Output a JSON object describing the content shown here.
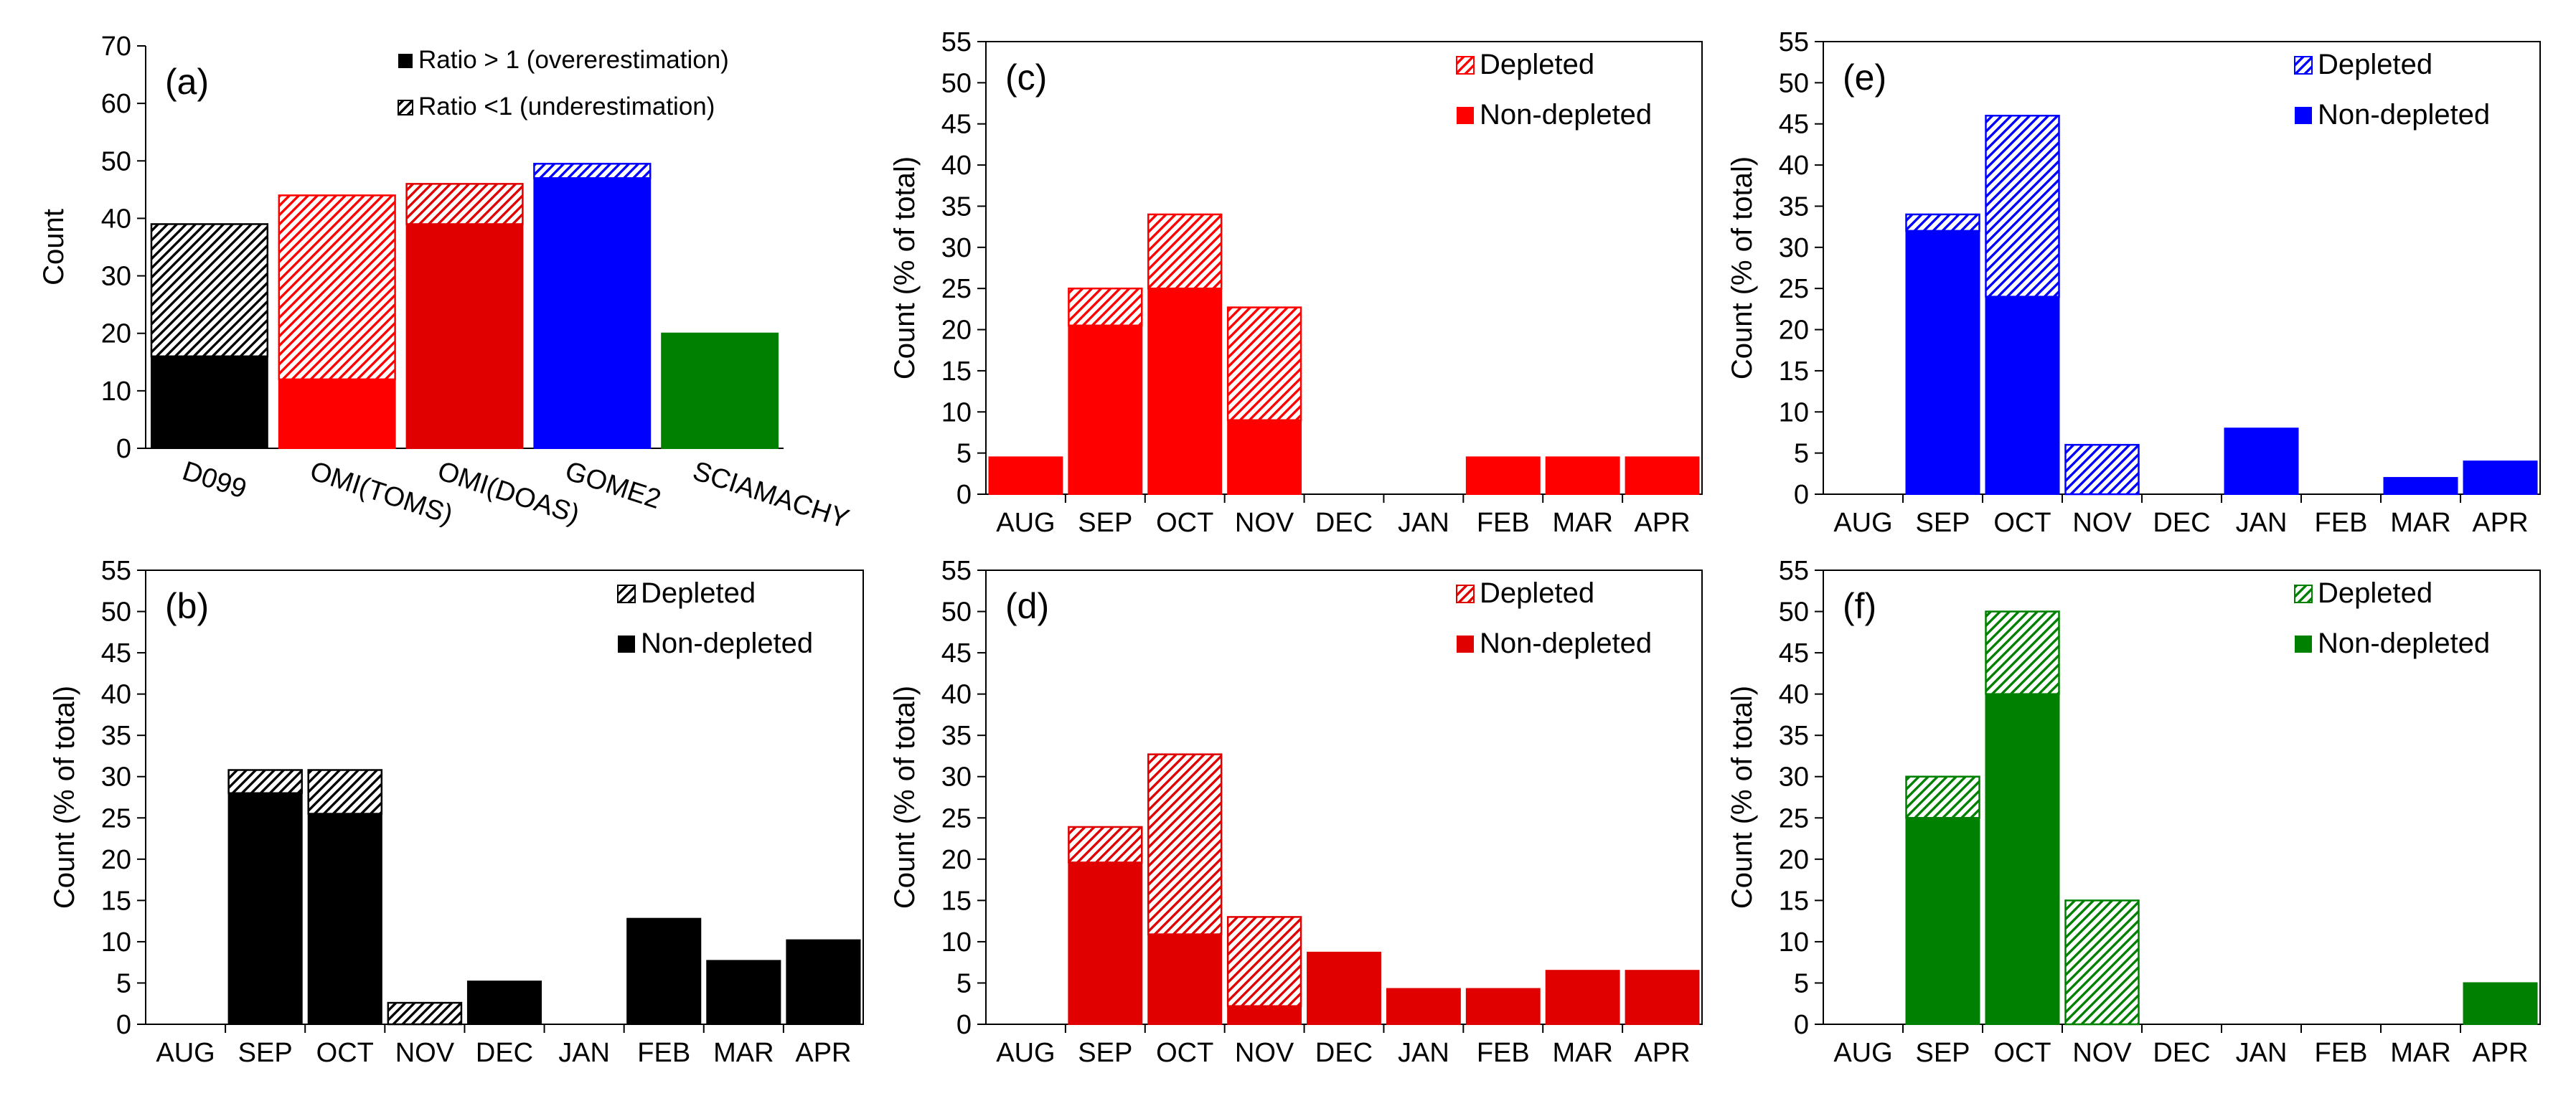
{
  "colors": {
    "black": "#000000",
    "red_light": "#ff0000",
    "red_dark": "#e00000",
    "blue": "#0000ff",
    "green": "#008000"
  },
  "chart_data": [
    {
      "panel": "(a)",
      "type": "bar",
      "subtype": "stacked",
      "ylabel": "Count",
      "ylim": [
        0,
        70
      ],
      "yticks": [
        0,
        10,
        20,
        30,
        40,
        50,
        60,
        70
      ],
      "categories": [
        "D099",
        "OMI(TOMS)",
        "OMI(DOAS)",
        "GOME2",
        "SCIAMACHY"
      ],
      "bar_colors": [
        "#000000",
        "#ff0000",
        "#e00000",
        "#0000ff",
        "#008000"
      ],
      "series": [
        {
          "name": "Ratio > 1 (overerestimation)",
          "pattern": "solid",
          "values": [
            16,
            12,
            39,
            47,
            20
          ]
        },
        {
          "name": "Ratio <1 (underestimation)",
          "pattern": "hatched",
          "values": [
            23,
            32,
            7,
            2.5,
            0
          ]
        }
      ],
      "legend": [
        "Ratio > 1 (overerestimation)",
        "Ratio <1 (underestimation)"
      ],
      "legend_position": "top-right"
    },
    {
      "panel": "(b)",
      "type": "bar",
      "subtype": "stacked",
      "ylabel": "Count (% of total)",
      "ylim": [
        0,
        55
      ],
      "yticks": [
        0,
        5,
        10,
        15,
        20,
        25,
        30,
        35,
        40,
        45,
        50,
        55
      ],
      "color": "#000000",
      "categories": [
        "AUG",
        "SEP",
        "OCT",
        "NOV",
        "DEC",
        "JAN",
        "FEB",
        "MAR",
        "APR"
      ],
      "series": [
        {
          "name": "Non-depleted",
          "pattern": "solid",
          "values": [
            0,
            28,
            25.5,
            0,
            5.2,
            0,
            12.8,
            7.7,
            10.2
          ]
        },
        {
          "name": "Depleted",
          "pattern": "hatched",
          "values": [
            0,
            2.8,
            5.3,
            2.6,
            0,
            0,
            0,
            0,
            0
          ]
        }
      ],
      "legend": [
        "Depleted",
        "Non-depleted"
      ],
      "legend_position": "top-right"
    },
    {
      "panel": "(c)",
      "type": "bar",
      "subtype": "stacked",
      "ylabel": "Count (% of total)",
      "ylim": [
        0,
        55
      ],
      "yticks": [
        0,
        5,
        10,
        15,
        20,
        25,
        30,
        35,
        40,
        45,
        50,
        55
      ],
      "color": "#ff0000",
      "categories": [
        "AUG",
        "SEP",
        "OCT",
        "NOV",
        "DEC",
        "JAN",
        "FEB",
        "MAR",
        "APR"
      ],
      "series": [
        {
          "name": "Non-depleted",
          "pattern": "solid",
          "values": [
            4.5,
            20.5,
            25,
            9,
            0,
            0,
            4.5,
            4.5,
            4.5
          ]
        },
        {
          "name": "Depleted",
          "pattern": "hatched",
          "values": [
            0,
            4.5,
            9,
            13.7,
            0,
            0,
            0,
            0,
            0
          ]
        }
      ],
      "legend": [
        "Depleted",
        "Non-depleted"
      ],
      "legend_position": "top-right"
    },
    {
      "panel": "(d)",
      "type": "bar",
      "subtype": "stacked",
      "ylabel": "Count (% of total)",
      "ylim": [
        0,
        55
      ],
      "yticks": [
        0,
        5,
        10,
        15,
        20,
        25,
        30,
        35,
        40,
        45,
        50,
        55
      ],
      "color": "#e00000",
      "categories": [
        "AUG",
        "SEP",
        "OCT",
        "NOV",
        "DEC",
        "JAN",
        "FEB",
        "MAR",
        "APR"
      ],
      "series": [
        {
          "name": "Non-depleted",
          "pattern": "solid",
          "values": [
            0,
            19.6,
            10.9,
            2.2,
            8.7,
            4.3,
            4.3,
            6.5,
            6.5
          ]
        },
        {
          "name": "Depleted",
          "pattern": "hatched",
          "values": [
            0,
            4.3,
            21.8,
            10.8,
            0,
            0,
            0,
            0,
            0
          ]
        }
      ],
      "legend": [
        "Depleted",
        "Non-depleted"
      ],
      "legend_position": "top-right"
    },
    {
      "panel": "(e)",
      "type": "bar",
      "subtype": "stacked",
      "ylabel": "Count (% of total)",
      "ylim": [
        0,
        55
      ],
      "yticks": [
        0,
        5,
        10,
        15,
        20,
        25,
        30,
        35,
        40,
        45,
        50,
        55
      ],
      "color": "#0000ff",
      "categories": [
        "AUG",
        "SEP",
        "OCT",
        "NOV",
        "DEC",
        "JAN",
        "FEB",
        "MAR",
        "APR"
      ],
      "series": [
        {
          "name": "Non-depleted",
          "pattern": "solid",
          "values": [
            0,
            32,
            24,
            0,
            0,
            8,
            0,
            2,
            4
          ]
        },
        {
          "name": "Depleted",
          "pattern": "hatched",
          "values": [
            0,
            2,
            22,
            6,
            0,
            0,
            0,
            0,
            0
          ]
        }
      ],
      "legend": [
        "Depleted",
        "Non-depleted"
      ],
      "legend_position": "top-right"
    },
    {
      "panel": "(f)",
      "type": "bar",
      "subtype": "stacked",
      "ylabel": "Count (% of total)",
      "ylim": [
        0,
        55
      ],
      "yticks": [
        0,
        5,
        10,
        15,
        20,
        25,
        30,
        35,
        40,
        45,
        50,
        55
      ],
      "color": "#008000",
      "categories": [
        "AUG",
        "SEP",
        "OCT",
        "NOV",
        "DEC",
        "JAN",
        "FEB",
        "MAR",
        "APR"
      ],
      "series": [
        {
          "name": "Non-depleted",
          "pattern": "solid",
          "values": [
            0,
            25,
            40,
            0,
            0,
            0,
            0,
            0,
            5
          ]
        },
        {
          "name": "Depleted",
          "pattern": "hatched",
          "values": [
            0,
            5,
            10,
            15,
            0,
            0,
            0,
            0,
            0
          ]
        }
      ],
      "legend": [
        "Depleted",
        "Non-depleted"
      ],
      "legend_position": "top-right"
    }
  ]
}
